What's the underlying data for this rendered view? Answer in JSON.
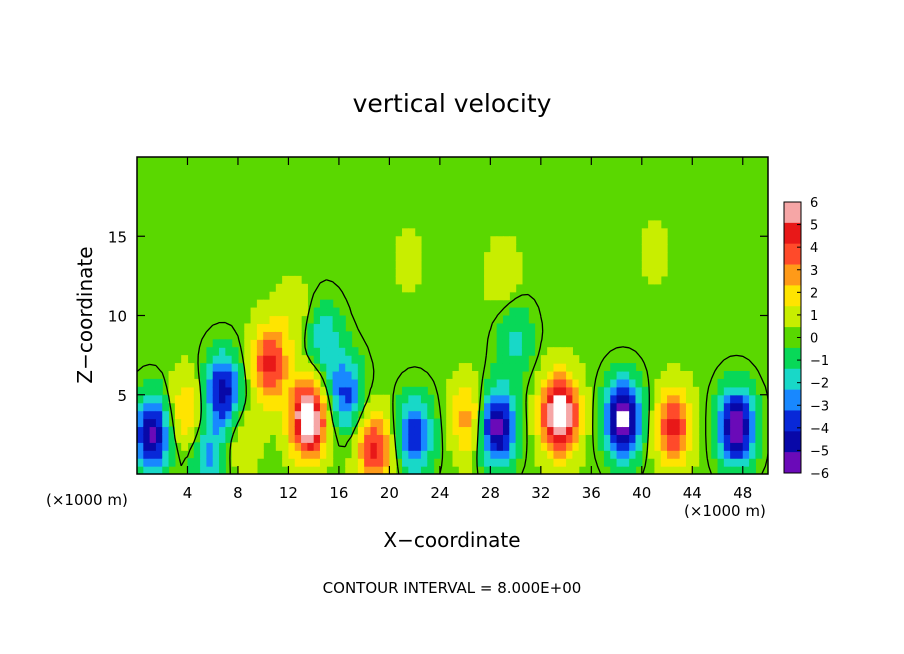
{
  "chart_data": {
    "type": "heatmap",
    "title": "vertical velocity",
    "xlabel": "X−coordinate",
    "ylabel": "Z−coordinate",
    "x_unit_left": "(×1000 m)",
    "x_unit_right": "(×1000 m)",
    "footer": "CONTOUR INTERVAL = 8.000E+00",
    "xlim": [
      0,
      50
    ],
    "ylim": [
      0,
      20
    ],
    "x_ticks": [
      "4",
      "8",
      "12",
      "16",
      "20",
      "24",
      "28",
      "32",
      "36",
      "40",
      "44",
      "48"
    ],
    "x_tick_values": [
      4,
      8,
      12,
      16,
      20,
      24,
      28,
      32,
      36,
      40,
      44,
      48
    ],
    "y_ticks": [
      "5",
      "10",
      "15"
    ],
    "y_tick_values": [
      5,
      10,
      15
    ],
    "colorbar_ticks": [
      "6",
      "5",
      "4",
      "3",
      "2",
      "1",
      "0",
      "−1",
      "−2",
      "−3",
      "−4",
      "−5",
      "−6"
    ],
    "colorbar_values": [
      6,
      5,
      4,
      3,
      2,
      1,
      0,
      -1,
      -2,
      -3,
      -4,
      -5,
      -6
    ],
    "colorbar_colors": [
      "#f6a6a6",
      "#e81818",
      "#ff4a2a",
      "#ff9a18",
      "#ffe400",
      "#c8ee00",
      "#58d800",
      "#08d858",
      "#18d8c8",
      "#1888ff",
      "#0828d8",
      "#0808a8",
      "#6a0ab8"
    ],
    "background_level": 0.2,
    "contour_levels": [
      0
    ],
    "features": [
      {
        "x": 1.2,
        "z": 2.5,
        "w": -6.0
      },
      {
        "x": 4.0,
        "z": 3.8,
        "w": 2.8
      },
      {
        "x": 6.8,
        "z": 5.2,
        "w": -5.5
      },
      {
        "x": 8.2,
        "z": 2.5,
        "w": 1.5
      },
      {
        "x": 5.6,
        "z": 1.2,
        "w": -3.0
      },
      {
        "x": 10.5,
        "z": 7.0,
        "w": 4.5
      },
      {
        "x": 13.6,
        "z": 3.5,
        "w": 7.5
      },
      {
        "x": 14.8,
        "z": 8.5,
        "w": -2.5
      },
      {
        "x": 16.5,
        "z": 5.0,
        "w": -4.0
      },
      {
        "x": 18.8,
        "z": 1.6,
        "w": 4.5
      },
      {
        "x": 22.0,
        "z": 2.5,
        "w": -4.5
      },
      {
        "x": 26.3,
        "z": 3.5,
        "w": 3.0
      },
      {
        "x": 28.5,
        "z": 3.0,
        "w": -6.5
      },
      {
        "x": 33.5,
        "z": 3.8,
        "w": 7.5
      },
      {
        "x": 38.5,
        "z": 3.5,
        "w": -7.0
      },
      {
        "x": 42.5,
        "z": 3.0,
        "w": 4.5
      },
      {
        "x": 47.5,
        "z": 3.0,
        "w": -6.5
      },
      {
        "x": 30.0,
        "z": 8.5,
        "w": -2.0
      },
      {
        "x": 12.5,
        "z": 10.0,
        "w": 1.0
      },
      {
        "x": 29.0,
        "z": 12.5,
        "w": 1.0
      },
      {
        "x": 21.5,
        "z": 13.5,
        "w": 0.6
      },
      {
        "x": 41.0,
        "z": 14.0,
        "w": 0.6
      }
    ]
  }
}
